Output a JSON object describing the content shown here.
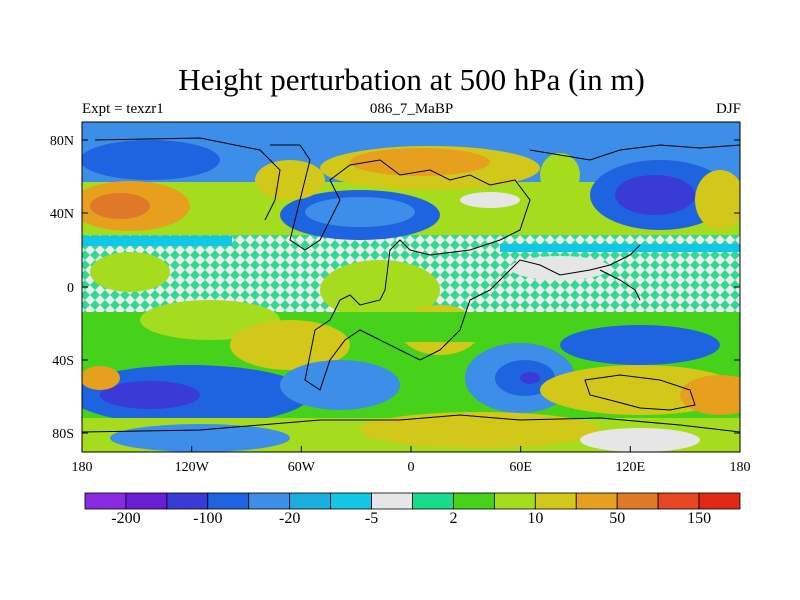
{
  "title": "Height perturbation at 500 hPa (in m)",
  "subtitle_left": "Expt = texzr1",
  "subtitle_center": "086_7_MaBP",
  "subtitle_right": "DJF",
  "x_ticks": [
    "180",
    "120W",
    "60W",
    "0",
    "60E",
    "120E",
    "180"
  ],
  "y_ticks": [
    "80N",
    "40N",
    "0",
    "40S",
    "80S"
  ],
  "colorbar": {
    "colors": [
      "#8a2be2",
      "#6a1fd6",
      "#3a3ad6",
      "#1e64e0",
      "#3c8ee8",
      "#1aaee0",
      "#10c8e6",
      "#e6e6e6",
      "#18dc8c",
      "#46d21a",
      "#a6dc1e",
      "#d2c81a",
      "#e6a01e",
      "#e0782a",
      "#e64620",
      "#e02a14"
    ],
    "labels": [
      "-200",
      "-100",
      "-20",
      "-5",
      "2",
      "10",
      "50",
      "150"
    ]
  }
}
